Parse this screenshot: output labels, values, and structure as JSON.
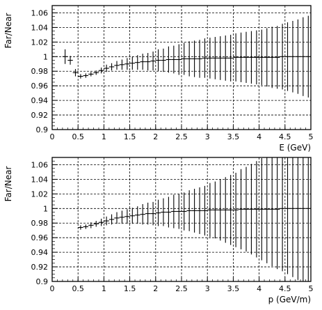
{
  "chart_data": [
    {
      "type": "scatter",
      "panel": "top",
      "xlabel": "E (GeV)",
      "ylabel": "Far/Near",
      "xlim": [
        0,
        5
      ],
      "ylim": [
        0.9,
        1.07
      ],
      "grid": true,
      "x_ticks": [
        "0",
        "0.5",
        "1",
        "1.5",
        "2",
        "2.5",
        "3",
        "3.5",
        "4",
        "4.5",
        "5"
      ],
      "y_ticks": [
        "0.9",
        "0.92",
        "0.94",
        "0.96",
        "0.98",
        "1",
        "1.02",
        "1.04",
        "1.06"
      ],
      "series": [
        {
          "x": [
            0.25,
            0.35,
            0.45,
            0.55,
            0.65,
            0.75,
            0.85,
            0.95,
            1.05,
            1.15,
            1.25,
            1.35,
            1.45,
            1.55,
            1.65,
            1.75,
            1.85,
            1.95,
            2.05,
            2.15,
            2.25,
            2.35,
            2.45,
            2.55,
            2.65,
            2.75,
            2.85,
            2.95,
            3.05,
            3.15,
            3.25,
            3.35,
            3.45,
            3.55,
            3.65,
            3.75,
            3.85,
            3.95,
            4.05,
            4.15,
            4.25,
            4.35,
            4.45,
            4.55,
            4.65,
            4.75,
            4.85,
            4.95
          ],
          "y": [
            1.0,
            0.995,
            0.978,
            0.973,
            0.974,
            0.976,
            0.978,
            0.981,
            0.984,
            0.986,
            0.988,
            0.989,
            0.99,
            0.991,
            0.992,
            0.993,
            0.993,
            0.994,
            0.995,
            0.995,
            0.996,
            0.996,
            0.996,
            0.997,
            0.997,
            0.997,
            0.997,
            0.998,
            0.998,
            0.998,
            0.998,
            0.998,
            0.998,
            0.999,
            0.999,
            0.999,
            0.999,
            0.999,
            0.999,
            0.999,
            0.999,
            0.999,
            1.0,
            1.0,
            1.0,
            1.0,
            1.0,
            1.0
          ],
          "yerr": [
            0.01,
            0.006,
            0.005,
            0.003,
            0.003,
            0.003,
            0.003,
            0.004,
            0.005,
            0.005,
            0.006,
            0.007,
            0.008,
            0.009,
            0.01,
            0.011,
            0.012,
            0.013,
            0.015,
            0.016,
            0.018,
            0.019,
            0.021,
            0.022,
            0.024,
            0.025,
            0.026,
            0.027,
            0.028,
            0.029,
            0.03,
            0.031,
            0.032,
            0.033,
            0.034,
            0.035,
            0.036,
            0.037,
            0.038,
            0.04,
            0.042,
            0.043,
            0.045,
            0.047,
            0.049,
            0.051,
            0.054,
            0.056
          ]
        }
      ]
    },
    {
      "type": "scatter",
      "panel": "bottom",
      "xlabel": "p (GeV/m)",
      "ylabel": "Far/Near",
      "xlim": [
        0,
        5
      ],
      "ylim": [
        0.9,
        1.07
      ],
      "grid": true,
      "x_ticks": [
        "0",
        "0.5",
        "1",
        "1.5",
        "2",
        "2.5",
        "3",
        "3.5",
        "4",
        "4.5",
        "5"
      ],
      "y_ticks": [
        "0.9",
        "0.92",
        "0.94",
        "0.96",
        "0.98",
        "1",
        "1.02",
        "1.04",
        "1.06"
      ],
      "series": [
        {
          "x": [
            0.55,
            0.65,
            0.75,
            0.85,
            0.95,
            1.05,
            1.15,
            1.25,
            1.35,
            1.45,
            1.55,
            1.65,
            1.75,
            1.85,
            1.95,
            2.05,
            2.15,
            2.25,
            2.35,
            2.45,
            2.55,
            2.65,
            2.75,
            2.85,
            2.95,
            3.05,
            3.15,
            3.25,
            3.35,
            3.45,
            3.55,
            3.65,
            3.75,
            3.85,
            3.95,
            4.05,
            4.15,
            4.25,
            4.35,
            4.45,
            4.55,
            4.65,
            4.75,
            4.85,
            4.95
          ],
          "y": [
            0.974,
            0.975,
            0.977,
            0.979,
            0.981,
            0.983,
            0.985,
            0.987,
            0.988,
            0.989,
            0.99,
            0.991,
            0.992,
            0.993,
            0.993,
            0.994,
            0.995,
            0.995,
            0.996,
            0.996,
            0.996,
            0.997,
            0.997,
            0.997,
            0.997,
            0.998,
            0.998,
            0.998,
            0.998,
            0.998,
            0.998,
            0.999,
            0.999,
            0.999,
            0.999,
            0.999,
            0.999,
            0.999,
            0.999,
            1.0,
            1.0,
            1.0,
            1.0,
            1.0,
            1.0
          ],
          "yerr": [
            0.003,
            0.003,
            0.004,
            0.004,
            0.005,
            0.006,
            0.007,
            0.008,
            0.009,
            0.01,
            0.011,
            0.012,
            0.014,
            0.015,
            0.016,
            0.018,
            0.019,
            0.021,
            0.023,
            0.024,
            0.026,
            0.028,
            0.03,
            0.032,
            0.034,
            0.037,
            0.039,
            0.042,
            0.045,
            0.048,
            0.051,
            0.055,
            0.058,
            0.062,
            0.066,
            0.07,
            0.074,
            0.078,
            0.082,
            0.086,
            0.09,
            0.094,
            0.098,
            0.1,
            0.1
          ]
        }
      ]
    }
  ]
}
